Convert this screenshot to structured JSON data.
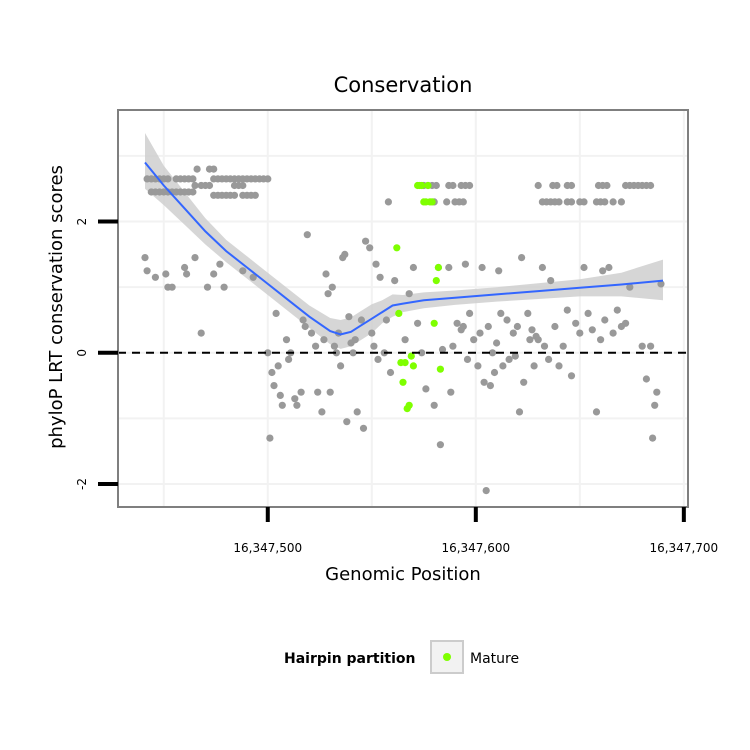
{
  "chart_data": {
    "type": "scatter",
    "title": "Conservation",
    "xlabel": "Genomic Position",
    "ylabel": "phyloP LRT conservation scores",
    "xlim": [
      16347428,
      16347702
    ],
    "ylim": [
      -2.35,
      3.7
    ],
    "x_ticks": [
      {
        "value": 16347500,
        "label": "16,347,500"
      },
      {
        "value": 16347600,
        "label": "16,347,600"
      },
      {
        "value": 16347700,
        "label": "16,347,700"
      }
    ],
    "y_ticks": [
      {
        "value": -2,
        "label": "-2"
      },
      {
        "value": 0,
        "label": "0"
      },
      {
        "value": 2,
        "label": "2"
      }
    ],
    "reference_line": {
      "y": 0,
      "style": "dashed"
    },
    "grid": true,
    "legend": {
      "title": "Hairpin partition",
      "placement": "bottom",
      "entries": [
        {
          "label": "Mature",
          "color": "#7fff00"
        }
      ]
    },
    "colors": {
      "other": "#999999",
      "mature": "#7fff00",
      "smooth": "#3366ff",
      "ribbon": "#cccccc",
      "panel_border": "#7f7f7f",
      "grid": "#f2f2f2"
    },
    "series": [
      {
        "name": "",
        "color": "#999999",
        "points": [
          [
            16347442,
            2.65
          ],
          [
            16347444,
            2.65
          ],
          [
            16347446,
            2.65
          ],
          [
            16347448,
            2.65
          ],
          [
            16347450,
            2.65
          ],
          [
            16347452,
            2.65
          ],
          [
            16347444,
            2.45
          ],
          [
            16347446,
            2.45
          ],
          [
            16347448,
            2.45
          ],
          [
            16347450,
            2.45
          ],
          [
            16347452,
            2.45
          ],
          [
            16347454,
            2.45
          ],
          [
            16347456,
            2.45
          ],
          [
            16347456,
            2.65
          ],
          [
            16347458,
            2.65
          ],
          [
            16347460,
            2.65
          ],
          [
            16347462,
            2.65
          ],
          [
            16347464,
            2.65
          ],
          [
            16347458,
            2.45
          ],
          [
            16347460,
            2.45
          ],
          [
            16347462,
            2.45
          ],
          [
            16347464,
            2.45
          ],
          [
            16347466,
            2.8
          ],
          [
            16347472,
            2.8
          ],
          [
            16347474,
            2.8
          ],
          [
            16347465,
            2.55
          ],
          [
            16347468,
            2.55
          ],
          [
            16347470,
            2.55
          ],
          [
            16347472,
            2.55
          ],
          [
            16347474,
            2.65
          ],
          [
            16347476,
            2.65
          ],
          [
            16347478,
            2.65
          ],
          [
            16347480,
            2.65
          ],
          [
            16347482,
            2.65
          ],
          [
            16347484,
            2.65
          ],
          [
            16347486,
            2.65
          ],
          [
            16347488,
            2.65
          ],
          [
            16347490,
            2.65
          ],
          [
            16347492,
            2.65
          ],
          [
            16347494,
            2.65
          ],
          [
            16347496,
            2.65
          ],
          [
            16347498,
            2.65
          ],
          [
            16347500,
            2.65
          ],
          [
            16347474,
            2.4
          ],
          [
            16347476,
            2.4
          ],
          [
            16347478,
            2.4
          ],
          [
            16347480,
            2.4
          ],
          [
            16347482,
            2.4
          ],
          [
            16347484,
            2.4
          ],
          [
            16347488,
            2.4
          ],
          [
            16347490,
            2.4
          ],
          [
            16347492,
            2.4
          ],
          [
            16347494,
            2.4
          ],
          [
            16347484,
            2.55
          ],
          [
            16347486,
            2.55
          ],
          [
            16347488,
            2.55
          ],
          [
            16347441,
            1.45
          ],
          [
            16347442,
            1.25
          ],
          [
            16347446,
            1.15
          ],
          [
            16347451,
            1.2
          ],
          [
            16347452,
            1.0
          ],
          [
            16347454,
            1.0
          ],
          [
            16347460,
            1.3
          ],
          [
            16347461,
            1.2
          ],
          [
            16347465,
            1.45
          ],
          [
            16347468,
            0.3
          ],
          [
            16347471,
            1.0
          ],
          [
            16347474,
            1.2
          ],
          [
            16347477,
            1.35
          ],
          [
            16347479,
            1.0
          ],
          [
            16347488,
            1.25
          ],
          [
            16347493,
            1.15
          ],
          [
            16347500,
            0.0
          ],
          [
            16347501,
            -1.3
          ],
          [
            16347502,
            -0.3
          ],
          [
            16347503,
            -0.5
          ],
          [
            16347504,
            0.6
          ],
          [
            16347505,
            -0.2
          ],
          [
            16347506,
            -0.65
          ],
          [
            16347507,
            -0.8
          ],
          [
            16347509,
            0.2
          ],
          [
            16347510,
            -0.1
          ],
          [
            16347511,
            0.0
          ],
          [
            16347513,
            -0.7
          ],
          [
            16347514,
            -0.8
          ],
          [
            16347516,
            -0.6
          ],
          [
            16347517,
            0.5
          ],
          [
            16347518,
            0.4
          ],
          [
            16347519,
            1.8
          ],
          [
            16347521,
            0.3
          ],
          [
            16347523,
            0.1
          ],
          [
            16347524,
            -0.6
          ],
          [
            16347526,
            -0.9
          ],
          [
            16347527,
            0.2
          ],
          [
            16347528,
            1.2
          ],
          [
            16347529,
            0.9
          ],
          [
            16347530,
            -0.6
          ],
          [
            16347531,
            1.0
          ],
          [
            16347532,
            0.1
          ],
          [
            16347533,
            0.0
          ],
          [
            16347534,
            0.3
          ],
          [
            16347535,
            -0.2
          ],
          [
            16347536,
            1.45
          ],
          [
            16347537,
            1.5
          ],
          [
            16347538,
            -1.05
          ],
          [
            16347539,
            0.55
          ],
          [
            16347540,
            0.15
          ],
          [
            16347541,
            0.0
          ],
          [
            16347542,
            0.2
          ],
          [
            16347543,
            -0.9
          ],
          [
            16347545,
            0.5
          ],
          [
            16347546,
            -1.15
          ],
          [
            16347547,
            1.7
          ],
          [
            16347549,
            1.6
          ],
          [
            16347550,
            0.3
          ],
          [
            16347551,
            0.1
          ],
          [
            16347552,
            1.35
          ],
          [
            16347553,
            -0.1
          ],
          [
            16347554,
            1.15
          ],
          [
            16347556,
            0.0
          ],
          [
            16347557,
            0.5
          ],
          [
            16347558,
            2.3
          ],
          [
            16347559,
            -0.3
          ],
          [
            16347561,
            1.1
          ],
          [
            16347566,
            0.2
          ],
          [
            16347568,
            0.9
          ],
          [
            16347570,
            1.3
          ],
          [
            16347572,
            0.45
          ],
          [
            16347574,
            0.0
          ],
          [
            16347576,
            -0.55
          ],
          [
            16347580,
            -0.8
          ],
          [
            16347582,
            1.3
          ],
          [
            16347583,
            -1.4
          ],
          [
            16347584,
            0.05
          ],
          [
            16347587,
            1.3
          ],
          [
            16347588,
            -0.6
          ],
          [
            16347589,
            0.1
          ],
          [
            16347591,
            0.45
          ],
          [
            16347593,
            0.35
          ],
          [
            16347594,
            0.4
          ],
          [
            16347595,
            1.35
          ],
          [
            16347596,
            -0.1
          ],
          [
            16347597,
            0.6
          ],
          [
            16347599,
            0.2
          ],
          [
            16347601,
            -0.2
          ],
          [
            16347602,
            0.3
          ],
          [
            16347603,
            1.3
          ],
          [
            16347604,
            -0.45
          ],
          [
            16347605,
            -2.1
          ],
          [
            16347606,
            0.4
          ],
          [
            16347607,
            -0.5
          ],
          [
            16347608,
            0.0
          ],
          [
            16347609,
            -0.3
          ],
          [
            16347610,
            0.15
          ],
          [
            16347611,
            1.25
          ],
          [
            16347612,
            0.6
          ],
          [
            16347613,
            -0.2
          ],
          [
            16347615,
            0.5
          ],
          [
            16347616,
            -0.1
          ],
          [
            16347618,
            0.3
          ],
          [
            16347619,
            -0.05
          ],
          [
            16347620,
            0.4
          ],
          [
            16347621,
            -0.9
          ],
          [
            16347622,
            1.45
          ],
          [
            16347623,
            -0.45
          ],
          [
            16347625,
            0.6
          ],
          [
            16347626,
            0.2
          ],
          [
            16347627,
            0.35
          ],
          [
            16347628,
            -0.2
          ],
          [
            16347629,
            0.25
          ],
          [
            16347630,
            0.2
          ],
          [
            16347632,
            1.3
          ],
          [
            16347633,
            0.1
          ],
          [
            16347635,
            -0.1
          ],
          [
            16347636,
            1.1
          ],
          [
            16347638,
            0.4
          ],
          [
            16347640,
            -0.2
          ],
          [
            16347642,
            0.1
          ],
          [
            16347644,
            0.65
          ],
          [
            16347646,
            -0.35
          ],
          [
            16347648,
            0.45
          ],
          [
            16347650,
            0.3
          ],
          [
            16347652,
            1.3
          ],
          [
            16347654,
            0.6
          ],
          [
            16347656,
            0.35
          ],
          [
            16347658,
            -0.9
          ],
          [
            16347660,
            0.2
          ],
          [
            16347661,
            1.25
          ],
          [
            16347662,
            0.5
          ],
          [
            16347664,
            1.3
          ],
          [
            16347666,
            0.3
          ],
          [
            16347668,
            0.65
          ],
          [
            16347670,
            0.4
          ],
          [
            16347672,
            0.45
          ],
          [
            16347674,
            1.0
          ],
          [
            16347680,
            0.1
          ],
          [
            16347682,
            -0.4
          ],
          [
            16347684,
            0.1
          ],
          [
            16347685,
            -1.3
          ],
          [
            16347686,
            -0.8
          ],
          [
            16347687,
            -0.6
          ],
          [
            16347689,
            1.05
          ],
          [
            16347575,
            2.55
          ],
          [
            16347577,
            2.55
          ],
          [
            16347579,
            2.55
          ],
          [
            16347581,
            2.55
          ],
          [
            16347587,
            2.55
          ],
          [
            16347589,
            2.55
          ],
          [
            16347593,
            2.55
          ],
          [
            16347595,
            2.55
          ],
          [
            16347597,
            2.55
          ],
          [
            16347580,
            2.3
          ],
          [
            16347586,
            2.3
          ],
          [
            16347590,
            2.3
          ],
          [
            16347592,
            2.3
          ],
          [
            16347594,
            2.3
          ],
          [
            16347630,
            2.55
          ],
          [
            16347637,
            2.55
          ],
          [
            16347639,
            2.55
          ],
          [
            16347644,
            2.55
          ],
          [
            16347646,
            2.55
          ],
          [
            16347632,
            2.3
          ],
          [
            16347634,
            2.3
          ],
          [
            16347636,
            2.3
          ],
          [
            16347638,
            2.3
          ],
          [
            16347640,
            2.3
          ],
          [
            16347644,
            2.3
          ],
          [
            16347646,
            2.3
          ],
          [
            16347650,
            2.3
          ],
          [
            16347652,
            2.3
          ],
          [
            16347659,
            2.55
          ],
          [
            16347661,
            2.55
          ],
          [
            16347663,
            2.55
          ],
          [
            16347672,
            2.55
          ],
          [
            16347674,
            2.55
          ],
          [
            16347676,
            2.55
          ],
          [
            16347678,
            2.55
          ],
          [
            16347680,
            2.55
          ],
          [
            16347682,
            2.55
          ],
          [
            16347684,
            2.55
          ],
          [
            16347658,
            2.3
          ],
          [
            16347660,
            2.3
          ],
          [
            16347662,
            2.3
          ],
          [
            16347666,
            2.3
          ],
          [
            16347670,
            2.3
          ]
        ]
      },
      {
        "name": "Mature",
        "color": "#7fff00",
        "points": [
          [
            16347562,
            1.6
          ],
          [
            16347563,
            0.6
          ],
          [
            16347564,
            -0.15
          ],
          [
            16347565,
            -0.45
          ],
          [
            16347566,
            -0.15
          ],
          [
            16347567,
            -0.85
          ],
          [
            16347568,
            -0.8
          ],
          [
            16347569,
            -0.05
          ],
          [
            16347570,
            -0.2
          ],
          [
            16347572,
            2.55
          ],
          [
            16347573,
            2.55
          ],
          [
            16347574,
            2.55
          ],
          [
            16347575,
            2.3
          ],
          [
            16347576,
            2.3
          ],
          [
            16347577,
            2.55
          ],
          [
            16347578,
            2.3
          ],
          [
            16347579,
            2.3
          ],
          [
            16347580,
            0.45
          ],
          [
            16347581,
            1.1
          ],
          [
            16347582,
            1.3
          ],
          [
            16347583,
            -0.25
          ]
        ]
      }
    ],
    "smooth": {
      "x": [
        16347441,
        16347450,
        16347460,
        16347470,
        16347480,
        16347490,
        16347500,
        16347510,
        16347520,
        16347530,
        16347535,
        16347540,
        16347545,
        16347550,
        16347555,
        16347560,
        16347565,
        16347575,
        16347590,
        16347610,
        16347630,
        16347650,
        16347670,
        16347690
      ],
      "y": [
        2.9,
        2.55,
        2.2,
        1.85,
        1.55,
        1.3,
        1.05,
        0.8,
        0.55,
        0.33,
        0.28,
        0.32,
        0.42,
        0.52,
        0.62,
        0.72,
        0.75,
        0.8,
        0.84,
        0.89,
        0.94,
        0.99,
        1.04,
        1.1
      ],
      "ymin": [
        2.5,
        2.25,
        1.95,
        1.65,
        1.38,
        1.13,
        0.88,
        0.63,
        0.38,
        0.13,
        0.06,
        0.1,
        0.2,
        0.3,
        0.45,
        0.55,
        0.62,
        0.68,
        0.73,
        0.78,
        0.82,
        0.86,
        0.86,
        0.8
      ],
      "ymax": [
        3.35,
        2.85,
        2.45,
        2.05,
        1.72,
        1.47,
        1.22,
        0.97,
        0.72,
        0.53,
        0.5,
        0.54,
        0.64,
        0.74,
        0.8,
        0.89,
        0.88,
        0.92,
        0.95,
        1.0,
        1.06,
        1.12,
        1.22,
        1.42
      ]
    }
  }
}
